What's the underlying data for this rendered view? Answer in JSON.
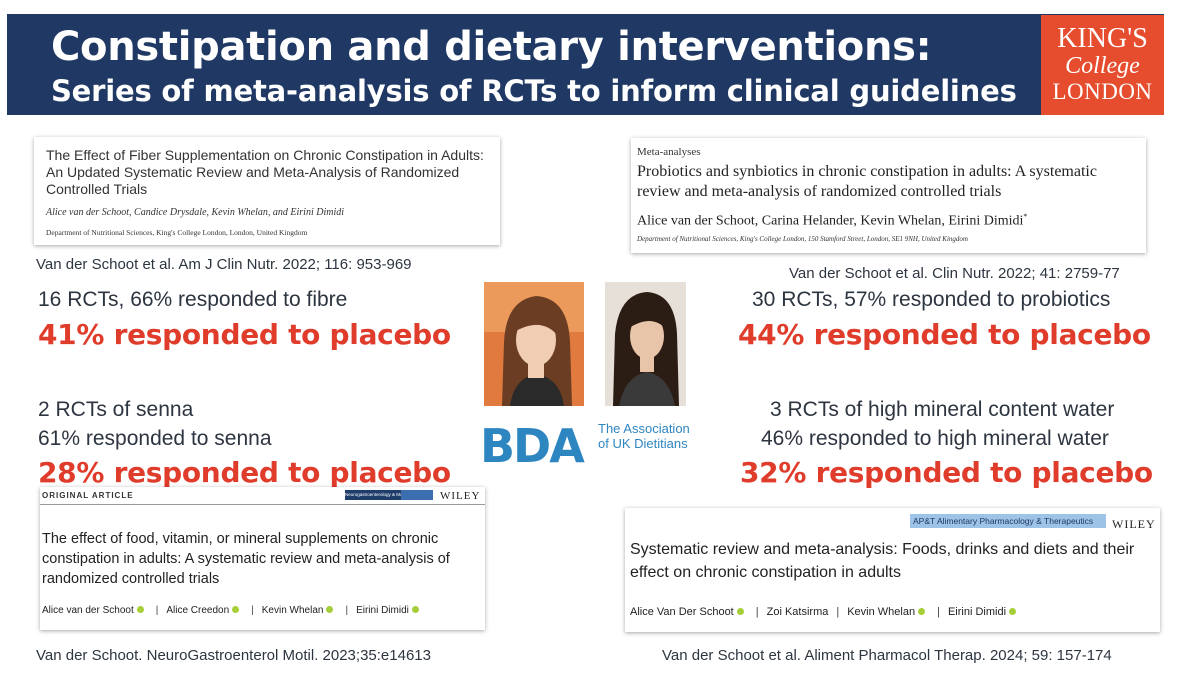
{
  "header": {
    "title_line1": "Constipation and dietary interventions:",
    "title_line2": "Series of meta-analysis of RCTs to inform clinical guidelines",
    "logo_line1": "KING'S",
    "logo_line2": "College",
    "logo_line3": "LONDON",
    "background_color": "#1f3864",
    "logo_color": "#e54d2e"
  },
  "papers": [
    {
      "title": "The Effect of Fiber Supplementation on Chronic Constipation in Adults: An Updated Systematic Review and Meta-Analysis of Randomized Controlled Trials",
      "authors": "Alice van der Schoot, Candice Drysdale, Kevin Whelan, and Eirini Dimidi",
      "department": "Department of Nutritional Sciences, King's College London, London, United Kingdom",
      "citation": "Van der Schoot et al. Am J Clin Nutr. 2022; 116: 953-969"
    },
    {
      "section_label": "Meta-analyses",
      "title": "Probiotics and synbiotics in chronic constipation in adults: A systematic review and meta-analysis of randomized controlled trials",
      "authors": "Alice van der Schoot, Carina Helander, Kevin Whelan, Eirini Dimidi",
      "author_mark": "*",
      "department": "Department of Nutritional Sciences, King's College London, 150 Stamford Street, London, SE1 9NH, United Kingdom",
      "citation": "Van der Schoot et al. Clin Nutr. 2022; 41: 2759-77"
    },
    {
      "section_label": "ORIGINAL ARTICLE",
      "journal_badge": "Neurogastroenterology & Motility",
      "publisher": "WILEY",
      "title": "The effect of food, vitamin, or mineral supplements on chronic constipation in adults: A systematic review and meta-analysis of randomized controlled trials",
      "authors": [
        "Alice van der Schoot",
        "Alice Creedon",
        "Kevin Whelan",
        "Eirini Dimidi"
      ],
      "separator": "|",
      "citation": "Van der Schoot. NeuroGastroenterol Motil. 2023;35:e14613"
    },
    {
      "journal_badge": "AP&T Alimentary Pharmacology & Therapeutics",
      "publisher": "WILEY",
      "title": "Systematic review and meta-analysis: Foods, drinks and diets and their effect on chronic constipation in adults",
      "authors": [
        "Alice Van Der Schoot",
        "Zoi Katsirma",
        "Kevin Whelan",
        "Eirini Dimidi"
      ],
      "separator": "|",
      "citation": "Van der Schoot et al. Aliment Pharmacol Therap. 2024; 59: 157-174"
    }
  ],
  "findings": {
    "fibre": {
      "line1": "16 RCTs, 66% responded to fibre",
      "placebo": "41% responded to placebo"
    },
    "probiotics": {
      "line1": "30 RCTs, 57% responded to probiotics",
      "placebo": "44% responded to placebo"
    },
    "senna": {
      "line1": "2 RCTs of senna",
      "line2": "61% responded to senna",
      "placebo": "28% responded to placebo"
    },
    "mineral_water": {
      "line1": "3 RCTs of high mineral content water",
      "line2": "46% responded to high mineral water",
      "placebo": "32% responded to placebo"
    }
  },
  "bda": {
    "logo_text": "BDA",
    "line1": "The Association",
    "line2": "of UK Dietitians",
    "color": "#2e86c1"
  },
  "accent_color": "#e03c2b"
}
